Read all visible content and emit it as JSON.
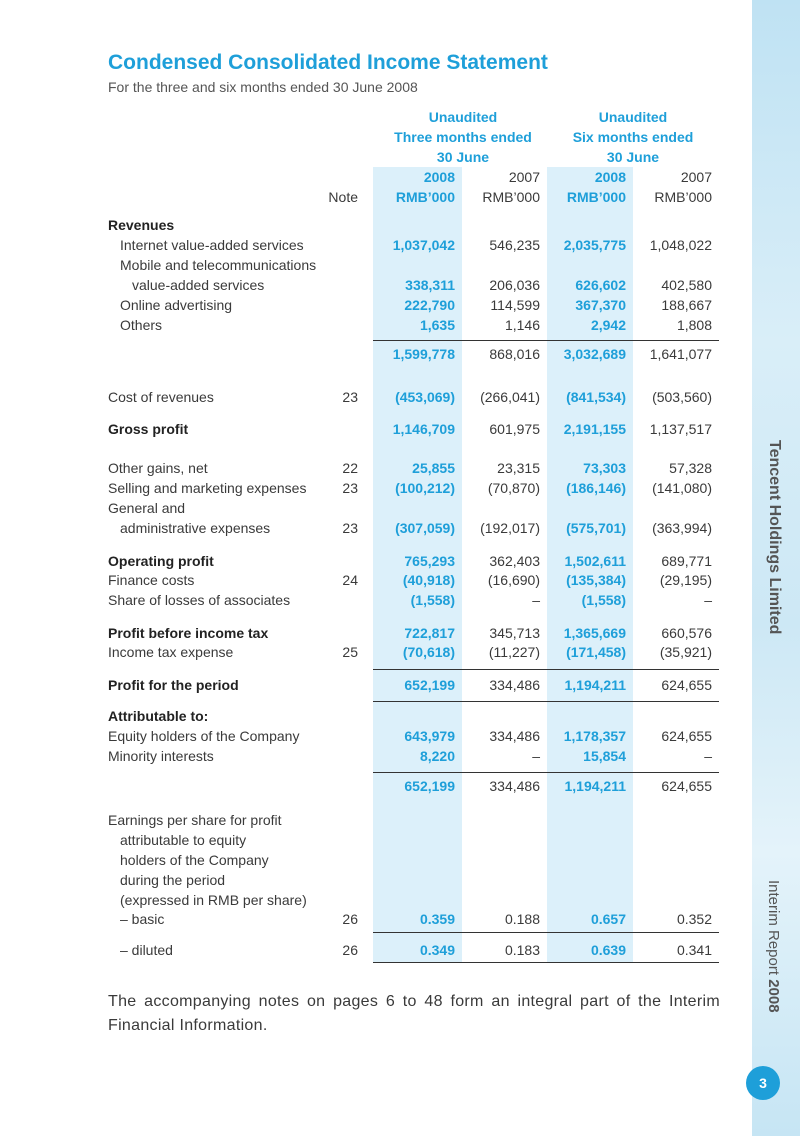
{
  "header": {
    "title": "Condensed Consolidated Income Statement",
    "subtitle": "For the three and six months ended 30 June 2008"
  },
  "table": {
    "groups": [
      {
        "lines": [
          "Unaudited",
          "Three months ended",
          "30 June"
        ]
      },
      {
        "lines": [
          "Unaudited",
          "Six months ended",
          "30 June"
        ]
      }
    ],
    "note_heading": "Note",
    "columns": [
      {
        "year": "2008",
        "unit": "RMB’000"
      },
      {
        "year": "2007",
        "unit": "RMB’000"
      },
      {
        "year": "2008",
        "unit": "RMB’000"
      },
      {
        "year": "2007",
        "unit": "RMB’000"
      }
    ],
    "rows": [
      {
        "label": "Revenues",
        "bold": true
      },
      {
        "label": "Internet value-added services",
        "values": [
          "1,037,042",
          "546,235",
          "2,035,775",
          "1,048,022"
        ]
      },
      {
        "label": "Mobile and telecommunications"
      },
      {
        "label": "value-added services",
        "values": [
          "338,311",
          "206,036",
          "626,602",
          "402,580"
        ]
      },
      {
        "label": "Online advertising",
        "values": [
          "222,790",
          "114,599",
          "367,370",
          "188,667"
        ]
      },
      {
        "label": "Others",
        "values": [
          "1,635",
          "1,146",
          "2,942",
          "1,808"
        ]
      },
      {
        "values": [
          "1,599,778",
          "868,016",
          "3,032,689",
          "1,641,077"
        ]
      },
      {
        "label": "Cost of revenues",
        "note": "23",
        "values": [
          "(453,069)",
          "(266,041)",
          "(841,534)",
          "(503,560)"
        ]
      },
      {
        "label": "Gross profit",
        "bold": true,
        "values": [
          "1,146,709",
          "601,975",
          "2,191,155",
          "1,137,517"
        ]
      },
      {
        "label": "Other gains, net",
        "note": "22",
        "values": [
          "25,855",
          "23,315",
          "73,303",
          "57,328"
        ]
      },
      {
        "label": "Selling and marketing expenses",
        "note": "23",
        "values": [
          "(100,212)",
          "(70,870)",
          "(186,146)",
          "(141,080)"
        ]
      },
      {
        "label": "General and"
      },
      {
        "label": "administrative expenses",
        "note": "23",
        "values": [
          "(307,059)",
          "(192,017)",
          "(575,701)",
          "(363,994)"
        ]
      },
      {
        "label": "Operating profit",
        "bold": true,
        "values": [
          "765,293",
          "362,403",
          "1,502,611",
          "689,771"
        ]
      },
      {
        "label": "Finance costs",
        "note": "24",
        "values": [
          "(40,918)",
          "(16,690)",
          "(135,384)",
          "(29,195)"
        ]
      },
      {
        "label": "Share of losses of associates",
        "values": [
          "(1,558)",
          "–",
          "(1,558)",
          "–"
        ]
      },
      {
        "label": "Profit before income tax",
        "bold": true,
        "values": [
          "722,817",
          "345,713",
          "1,365,669",
          "660,576"
        ]
      },
      {
        "label": "Income tax expense",
        "note": "25",
        "values": [
          "(70,618)",
          "(11,227)",
          "(171,458)",
          "(35,921)"
        ]
      },
      {
        "label": "Profit for the period",
        "bold": true,
        "values": [
          "652,199",
          "334,486",
          "1,194,211",
          "624,655"
        ]
      },
      {
        "label": "Attributable to:",
        "bold": true
      },
      {
        "label": "Equity holders of the Company",
        "values": [
          "643,979",
          "334,486",
          "1,178,357",
          "624,655"
        ]
      },
      {
        "label": "Minority interests",
        "values": [
          "8,220",
          "–",
          "15,854",
          "–"
        ]
      },
      {
        "values": [
          "652,199",
          "334,486",
          "1,194,211",
          "624,655"
        ]
      },
      {
        "label": "Earnings per share for profit"
      },
      {
        "label": "attributable to equity"
      },
      {
        "label": "holders of the Company"
      },
      {
        "label": "during the period"
      },
      {
        "label": "(expressed in RMB per share)"
      },
      {
        "label": "– basic",
        "note": "26",
        "values": [
          "0.359",
          "0.188",
          "0.657",
          "0.352"
        ]
      },
      {
        "label": "– diluted",
        "note": "26",
        "values": [
          "0.349",
          "0.183",
          "0.639",
          "0.341"
        ]
      }
    ]
  },
  "footer": "The accompanying notes on pages 6 to 48 form an integral part of the Interim Financial Information.",
  "sidebar": {
    "company": "Tencent Holdings Limited",
    "report": "Interim Report",
    "year": "2008",
    "page": "3"
  }
}
